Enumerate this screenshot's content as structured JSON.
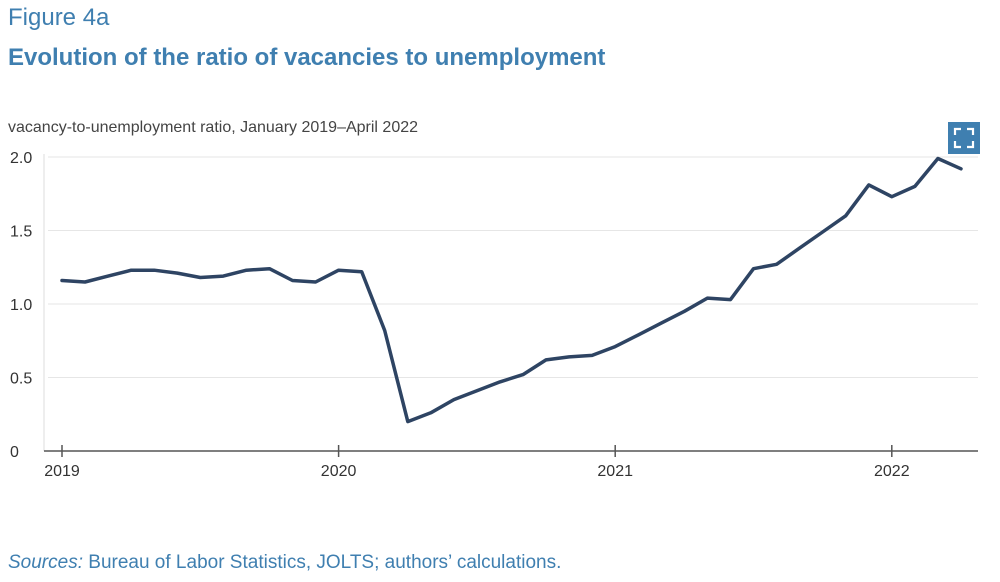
{
  "figure": {
    "label": "Figure 4a",
    "title": "Evolution of the ratio of vacancies to unemployment",
    "expand_icon": "expand-icon"
  },
  "sources": {
    "label": "Sources:",
    "text": "Bureau of Labor Statistics, JOLTS; authors’ calculations."
  },
  "colors": {
    "accent": "#3f7fb0",
    "line": "#2e4463",
    "axis_text": "#333333",
    "grid": "#e6e6e6"
  },
  "chart_data": {
    "type": "line",
    "ylabel": "vacancy-to-unemployment ratio, January 2019–April 2022",
    "xlabel": "",
    "ylim": [
      0,
      2.0
    ],
    "yticks": [
      0,
      0.5,
      1.0,
      1.5,
      2.0
    ],
    "ytick_labels": [
      "0",
      "0.5",
      "1.0",
      "1.5",
      "2.0"
    ],
    "xticks": [
      "2019-01",
      "2020-01",
      "2021-01",
      "2022-01"
    ],
    "xtick_labels": [
      "2019",
      "2020",
      "2021",
      "2022"
    ],
    "grid": "horizontal",
    "series": [
      {
        "x": [
          "2019-01",
          "2019-02",
          "2019-03",
          "2019-04",
          "2019-05",
          "2019-06",
          "2019-07",
          "2019-08",
          "2019-09",
          "2019-10",
          "2019-11",
          "2019-12",
          "2020-01",
          "2020-02",
          "2020-03",
          "2020-04",
          "2020-05",
          "2020-06",
          "2020-07",
          "2020-08",
          "2020-09",
          "2020-10",
          "2020-11",
          "2020-12",
          "2021-01",
          "2021-02",
          "2021-03",
          "2021-04",
          "2021-05",
          "2021-06",
          "2021-07",
          "2021-08",
          "2021-09",
          "2021-10",
          "2021-11",
          "2021-12",
          "2022-01",
          "2022-02",
          "2022-03",
          "2022-04"
        ],
        "values": [
          1.16,
          1.15,
          1.19,
          1.23,
          1.23,
          1.21,
          1.18,
          1.19,
          1.23,
          1.24,
          1.16,
          1.15,
          1.23,
          1.22,
          0.82,
          0.2,
          0.26,
          0.35,
          0.41,
          0.47,
          0.52,
          0.62,
          0.64,
          0.65,
          0.71,
          0.79,
          0.87,
          0.95,
          1.04,
          1.03,
          1.24,
          1.27,
          1.38,
          1.49,
          1.6,
          1.81,
          1.73,
          1.8,
          1.99,
          1.92
        ]
      }
    ]
  }
}
